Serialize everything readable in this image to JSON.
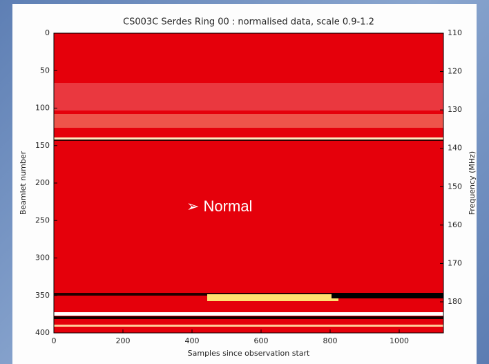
{
  "chart_data": {
    "type": "heatmap",
    "title": "CS003C Serdes Ring 00 : normalised data, scale 0.9-1.2",
    "x_label": "Samples since observation start",
    "y_label": "Beamlet number",
    "y2_label": "Frequency (MHz)",
    "xlim": [
      0,
      1128
    ],
    "xticks": [
      0,
      200,
      400,
      600,
      800,
      1000
    ],
    "ylim": [
      0,
      400
    ],
    "yticks": [
      0,
      50,
      100,
      150,
      200,
      250,
      300,
      350,
      400
    ],
    "y_inverted": true,
    "y2lim": [
      110,
      188.1
    ],
    "y2ticks": [
      110,
      120,
      130,
      140,
      150,
      160,
      170,
      180
    ],
    "annotation": "➢ Normal"
  }
}
